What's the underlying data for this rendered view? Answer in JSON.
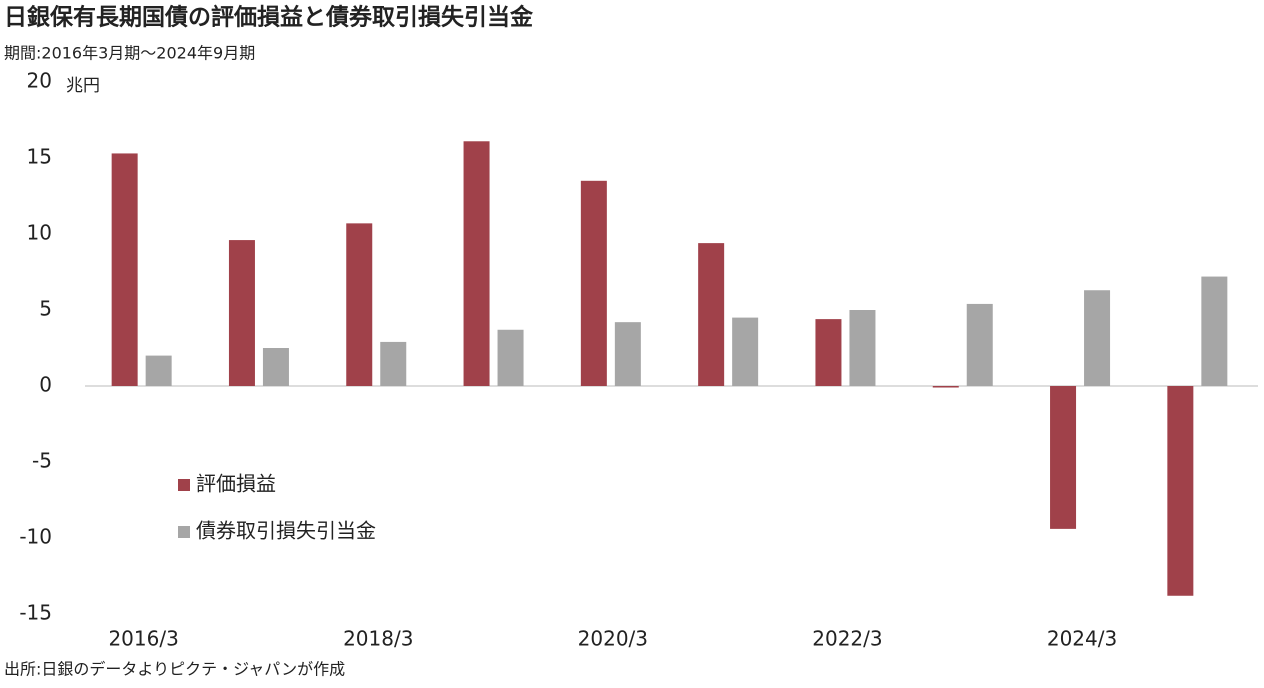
{
  "chart_data": {
    "type": "bar",
    "title": "日銀保有長期国債の評価損益と債券取引損失引当金",
    "subtitle": "期間:2016年3月期～2024年9月期",
    "y_unit": "兆円",
    "source": "出所:日銀のデータよりピクテ・ジャパンが作成",
    "categories": [
      "2016/3",
      null,
      "2018/3",
      null,
      "2020/3",
      null,
      "2022/3",
      null,
      "2024/3",
      null
    ],
    "series": [
      {
        "name": "評価損益",
        "color": "#a0414a",
        "values": [
          15.3,
          9.6,
          10.7,
          16.1,
          13.5,
          9.4,
          4.4,
          -0.1,
          -9.4,
          -13.8
        ]
      },
      {
        "name": "債券取引損失引当金",
        "color": "#a6a6a6",
        "values": [
          2.0,
          2.5,
          2.9,
          3.7,
          4.2,
          4.5,
          5.0,
          5.4,
          6.3,
          7.2
        ]
      }
    ],
    "ylim": [
      -15,
      20
    ],
    "yticks": [
      20,
      15,
      10,
      5,
      0,
      -5,
      -10,
      -15
    ],
    "negative_tick_color": "#e02020",
    "grid": false
  }
}
